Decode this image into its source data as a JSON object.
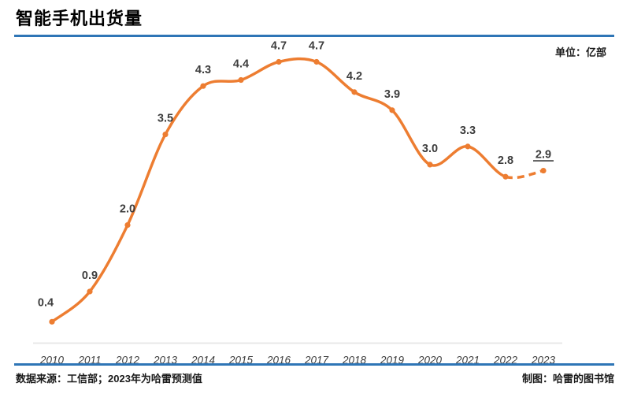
{
  "header": {
    "title": "智能手机出货量",
    "unit_label": "单位：亿部"
  },
  "footer": {
    "source": "数据来源：工信部；2023年为哈雷预测值",
    "credit": "制图：哈雷的图书馆"
  },
  "colors": {
    "accent_blue": "#2E75B6",
    "line_orange": "#ED7D31",
    "value_label_text": "#3D3D3D",
    "axis_line_gray": "#E8E8E8",
    "year_label_text": "#3D3D3D"
  },
  "chart_data": {
    "type": "line",
    "title": "智能手机出货量",
    "unit": "亿部",
    "x": [
      2010,
      2011,
      2012,
      2013,
      2014,
      2015,
      2016,
      2017,
      2018,
      2019,
      2020,
      2021,
      2022,
      2023
    ],
    "values": [
      0.4,
      0.9,
      2.0,
      3.5,
      4.3,
      4.4,
      4.7,
      4.7,
      4.2,
      3.9,
      3.0,
      3.3,
      2.8,
      2.9
    ],
    "point_labels": [
      "0.4",
      "0.9",
      "2.0",
      "3.5",
      "4.3",
      "4.4",
      "4.7",
      "4.7",
      "4.2",
      "3.9",
      "3.0",
      "3.3",
      "2.8",
      "2.9"
    ],
    "dashed_from_index": 12,
    "underlined_label_index": 13,
    "smooth": true,
    "markers": true,
    "grid": false,
    "legend_position": "none",
    "ylim": [
      0,
      5
    ],
    "notes": "2022→2023 segment dashed (forecast); 2.9 label underlined"
  }
}
